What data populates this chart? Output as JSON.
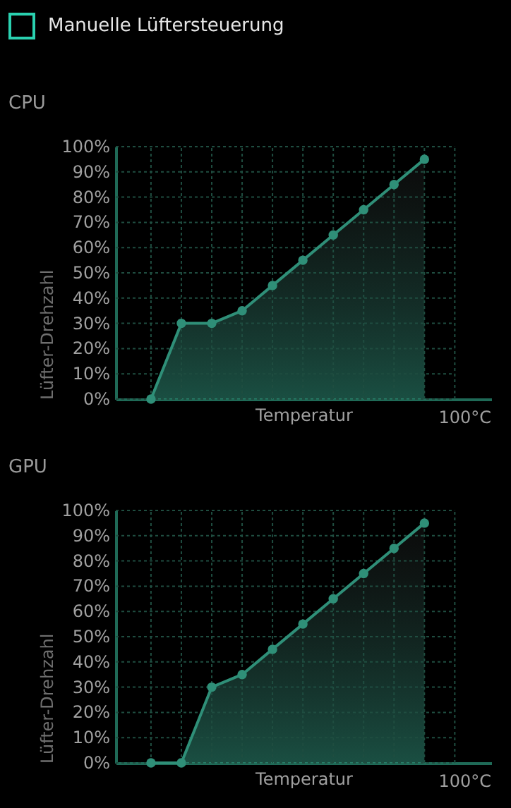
{
  "chart_data": [
    {
      "type": "other",
      "title": "Manuelle Lüftersteuerung"
    },
    {
      "type": "area",
      "title": "CPU",
      "xlabel": "Temperatur",
      "ylabel": "Lüfter-Drehzahl",
      "annotations": [
        "100°C"
      ],
      "categories": [
        null,
        null,
        null,
        null,
        null,
        null,
        null,
        null,
        null,
        null
      ],
      "series": [
        {
          "color": "#2f8f78",
          "values": [
            0,
            30,
            30,
            35,
            45,
            55,
            65,
            75,
            85,
            95
          ]
        }
      ],
      "ylim": [
        0,
        100
      ],
      "yticks": [
        {
          "value": 0,
          "label": "0%"
        },
        {
          "value": 10,
          "label": "10%"
        },
        {
          "value": 20,
          "label": "20%"
        },
        {
          "value": 30,
          "label": "30%"
        },
        {
          "value": 40,
          "label": "40%"
        },
        {
          "value": 50,
          "label": "50%"
        },
        {
          "value": 60,
          "label": "60%"
        },
        {
          "value": 70,
          "label": "70%"
        },
        {
          "value": 80,
          "label": "80%"
        },
        {
          "value": 90,
          "label": "90%"
        },
        {
          "value": 100,
          "label": "100%"
        }
      ],
      "grid": true,
      "marker": "circle"
    },
    {
      "type": "area",
      "title": "GPU",
      "xlabel": "Temperatur",
      "ylabel": "Lüfter-Drehzahl",
      "annotations": [
        "100°C"
      ],
      "categories": [
        null,
        null,
        null,
        null,
        null,
        null,
        null,
        null,
        null,
        null
      ],
      "series": [
        {
          "color": "#2f8f78",
          "values": [
            0,
            0,
            30,
            35,
            45,
            55,
            65,
            75,
            85,
            95
          ]
        }
      ],
      "ylim": [
        0,
        100
      ],
      "yticks": [
        {
          "value": 0,
          "label": "0%"
        },
        {
          "value": 10,
          "label": "10%"
        },
        {
          "value": 20,
          "label": "20%"
        },
        {
          "value": 30,
          "label": "30%"
        },
        {
          "value": 40,
          "label": "40%"
        },
        {
          "value": 50,
          "label": "50%"
        },
        {
          "value": 60,
          "label": "60%"
        },
        {
          "value": 70,
          "label": "70%"
        },
        {
          "value": 80,
          "label": "80%"
        },
        {
          "value": 90,
          "label": "90%"
        },
        {
          "value": 100,
          "label": "100%"
        }
      ],
      "grid": true,
      "marker": "circle"
    }
  ]
}
